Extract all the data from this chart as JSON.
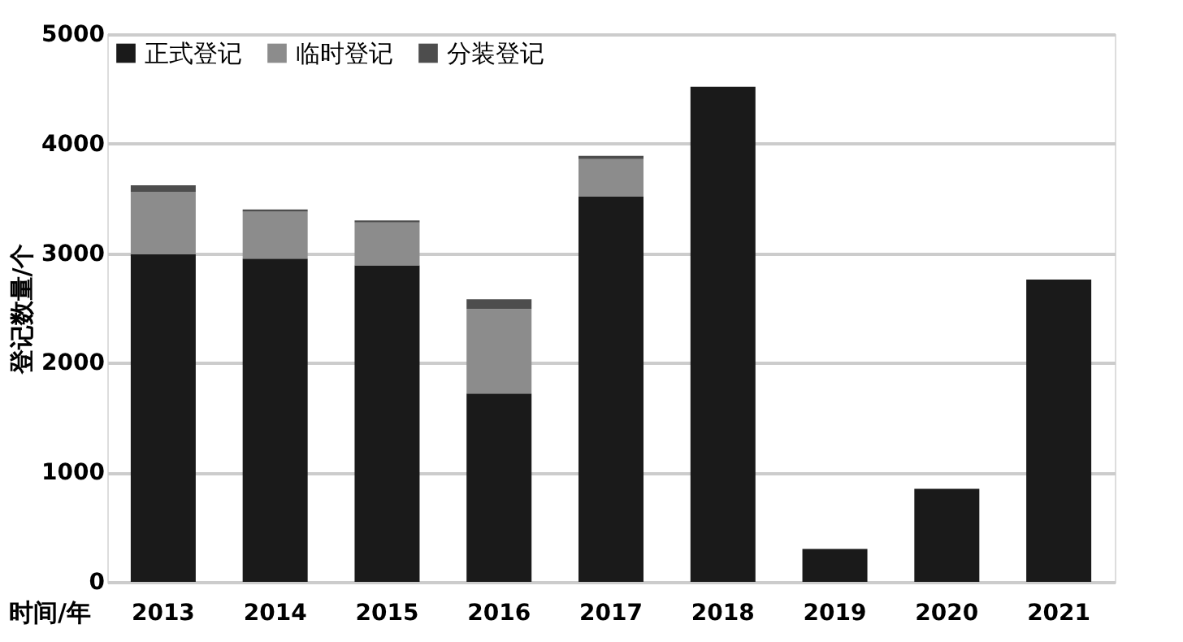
{
  "chart_data": {
    "type": "bar",
    "stacked": true,
    "xlabel": "时间/年",
    "ylabel": "登记数量/个",
    "categories": [
      "2013",
      "2014",
      "2015",
      "2016",
      "2017",
      "2018",
      "2019",
      "2020",
      "2021"
    ],
    "series": [
      {
        "name": "正式登记",
        "color": "#1a1a1a",
        "values": [
          2990,
          2950,
          2890,
          1720,
          3520,
          4520,
          300,
          850,
          2760
        ]
      },
      {
        "name": "临时登记",
        "color": "#8c8c8c",
        "values": [
          570,
          430,
          390,
          770,
          340,
          0,
          0,
          0,
          0
        ]
      },
      {
        "name": "分装登记",
        "color": "#4d4d4d",
        "values": [
          60,
          20,
          20,
          90,
          30,
          0,
          0,
          0,
          0
        ]
      }
    ],
    "ylim": [
      0,
      5000
    ],
    "yticks": [
      0,
      1000,
      2000,
      3000,
      4000,
      5000
    ],
    "grid": "y",
    "legend": "top left"
  }
}
